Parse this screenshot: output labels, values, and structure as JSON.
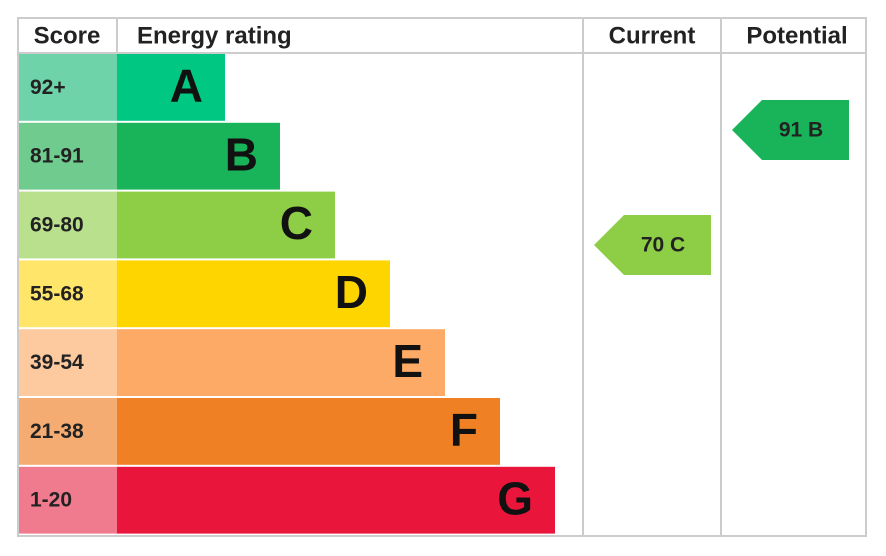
{
  "header": {
    "score": "Score",
    "energy_rating": "Energy rating",
    "current": "Current",
    "potential": "Potential"
  },
  "bands": [
    {
      "score": "92+",
      "letter": "A",
      "color": "#00c781",
      "tint": "#6fd3aa"
    },
    {
      "score": "81-91",
      "letter": "B",
      "color": "#19b459",
      "tint": "#6fcc8e"
    },
    {
      "score": "69-80",
      "letter": "C",
      "color": "#8dce46",
      "tint": "#b9e08c"
    },
    {
      "score": "55-68",
      "letter": "D",
      "color": "#ffd500",
      "tint": "#ffe56a"
    },
    {
      "score": "39-54",
      "letter": "E",
      "color": "#fcaa65",
      "tint": "#fdcaa0"
    },
    {
      "score": "21-38",
      "letter": "F",
      "color": "#ef8023",
      "tint": "#f5ac72"
    },
    {
      "score": "1-20",
      "letter": "G",
      "color": "#e9153b",
      "tint": "#f07a8e"
    }
  ],
  "current": {
    "label": "70 C",
    "color": "#8dce46"
  },
  "potential": {
    "label": "91 B",
    "color": "#19b459"
  }
}
